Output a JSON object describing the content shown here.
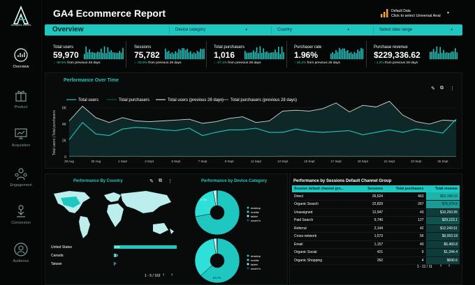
{
  "app": {
    "logo_text": "Analytics effects",
    "title": "GA4 Ecommerce Report"
  },
  "data_source": {
    "label": "Default Data",
    "value": "Click to select Universal Anal",
    "icon": "bar-chart-icon"
  },
  "sidebar": {
    "items": [
      {
        "label": "Overview",
        "icon": "overview-icon",
        "active": true
      },
      {
        "label": "Product",
        "icon": "gift-icon"
      },
      {
        "label": "Acquisition",
        "icon": "monitor-icon"
      },
      {
        "label": "Engagement",
        "icon": "engagement-icon"
      },
      {
        "label": "Conversion",
        "icon": "conversion-icon"
      },
      {
        "label": "Audience",
        "icon": "audience-icon"
      }
    ]
  },
  "filters": {
    "page": "Overview",
    "device": "Device category",
    "country": "Country",
    "date": "Select date range"
  },
  "kpis": [
    {
      "label": "Total users",
      "value": "59,970",
      "change": "↓ -36.5%",
      "suffix": "from previous 28 days"
    },
    {
      "label": "Sessions",
      "value": "75,782",
      "change": "↓ -33.8%",
      "suffix": "from previous 28 days"
    },
    {
      "label": "Total purchasers",
      "value": "1,016",
      "change": "↓ -27.1%",
      "suffix": "from previous 28 days"
    },
    {
      "label": "Purchaser rate",
      "value": "1.96%",
      "change": "↑ 26.2%",
      "suffix": "from previous 28 days"
    },
    {
      "label": "Purchase revenue",
      "value": "$229,336.62",
      "change": "↑ 1.2%",
      "suffix": "from previous 28 days"
    }
  ],
  "colors": {
    "accent": "#1ec8c0",
    "bg": "#050707",
    "line_dark": "#0f2a2a",
    "line_light": "#d8d8d8"
  },
  "trend": {
    "title": "Performance Over Time",
    "ylabel": "Total users | Total purchasers",
    "legend": [
      "Total users",
      "Total purchasers",
      "Total users (previous 28 days)",
      "Total purchasers (previous 28 days)"
    ],
    "yticks": [
      "6K",
      "4K",
      "2K",
      "0"
    ],
    "xticks": [
      "28 Aug",
      "30 Aug",
      "1 Sept",
      "3 Sept",
      "5 Sept",
      "7 Sept",
      "9 Sept",
      "11 Sept",
      "13 Sept",
      "15 Sept",
      "17 Sept",
      "19 Sept",
      "21 Sept",
      "23 Sept",
      "25 Sept"
    ]
  },
  "chart_data": {
    "type": "line",
    "x": [
      "28 Aug",
      "29 Aug",
      "30 Aug",
      "31 Aug",
      "1 Sept",
      "2 Sept",
      "3 Sept",
      "4 Sept",
      "5 Sept",
      "6 Sept",
      "7 Sept",
      "8 Sept",
      "9 Sept",
      "10 Sept",
      "11 Sept",
      "12 Sept",
      "13 Sept",
      "14 Sept",
      "15 Sept",
      "16 Sept",
      "17 Sept",
      "18 Sept",
      "19 Sept",
      "20 Sept",
      "21 Sept",
      "22 Sept",
      "23 Sept",
      "24 Sept",
      "25 Sept",
      "26 Sept"
    ],
    "series": [
      {
        "name": "Total users",
        "values": [
          2100,
          4200,
          2800,
          2600,
          3400,
          3600,
          3500,
          3300,
          3200,
          3500,
          2600,
          3000,
          3300,
          3300,
          3500,
          3000,
          3000,
          3400,
          3100,
          3000,
          3100,
          3200,
          2700,
          3000,
          3300,
          3000,
          3400,
          3200,
          2900,
          4600
        ]
      },
      {
        "name": "Total purchasers",
        "values": [
          60,
          60,
          50,
          40,
          50,
          60,
          55,
          50,
          45,
          50,
          40,
          45,
          50,
          55,
          60,
          50,
          45,
          55,
          50,
          45,
          50,
          55,
          45,
          50,
          55,
          50,
          55,
          50,
          45,
          70
        ]
      },
      {
        "name": "Total users (previous 28 days)",
        "values": [
          4400,
          6200,
          4800,
          4200,
          4800,
          4400,
          4300,
          4400,
          4500,
          4600,
          4100,
          4300,
          4700,
          4900,
          4200,
          4400,
          5600,
          5700,
          5600,
          5900,
          6600,
          5500,
          6300,
          6100,
          6800,
          5100,
          4300,
          4000,
          4500,
          4400
        ]
      },
      {
        "name": "Total purchasers (previous 28 days)",
        "values": [
          70,
          80,
          70,
          60,
          70,
          65,
          60,
          60,
          65,
          60,
          55,
          60,
          70,
          65,
          60,
          60,
          75,
          70,
          70,
          75,
          80,
          70,
          75,
          70,
          80,
          65,
          60,
          55,
          60,
          60
        ]
      }
    ],
    "ylim": [
      0,
      7000
    ]
  },
  "country": {
    "title": "Performance By Country",
    "rows": [
      {
        "name": "United States",
        "value": "938",
        "ratio": 1.0
      },
      {
        "name": "Canada",
        "value": "33",
        "ratio": 0.04
      },
      {
        "name": "Taiwan",
        "value": "7",
        "ratio": 0.01
      }
    ],
    "pager": "1 - 5 / 162"
  },
  "device": {
    "title": "Performance by Device Category",
    "legend": [
      "desktop",
      "mobile",
      "tablet",
      "smart tv"
    ],
    "pie1": {
      "label_big": "",
      "label_small": "2.7%",
      "share": [
        0.72,
        0.25,
        0.027,
        0.003
      ]
    },
    "pie2": {
      "label_big": "63.2%",
      "label_small": "",
      "share": [
        0.632,
        0.34,
        0.025,
        0.003
      ]
    }
  },
  "channels": {
    "title": "Performance by Sessions Default Channel Group",
    "headers": [
      "Session default channel gro...",
      "Sessions",
      "Total purchasers",
      "Total revenue"
    ],
    "rows": [
      [
        "Direct",
        "26,624",
        "463",
        "$93,196.03"
      ],
      [
        "Organic Search",
        "22,829",
        "267",
        "$76,374.9"
      ],
      [
        "Unassigned",
        "12,947",
        "43",
        "$10,293.95"
      ],
      [
        "Paid Search",
        "9,740",
        "127",
        "$29,123.1"
      ],
      [
        "Referral",
        "2,144",
        "42",
        "$12,243.51"
      ],
      [
        "Cross-network",
        "1,573",
        "56",
        "$9,003.18"
      ],
      [
        "Email",
        "1,157",
        "40",
        "$6,460.8"
      ],
      [
        "Organic Social",
        "421",
        "9",
        "$1,344.4"
      ],
      [
        "Organic Shopping",
        "262",
        "4",
        "$690.6"
      ]
    ],
    "pager": "1 - 11 / 11"
  }
}
